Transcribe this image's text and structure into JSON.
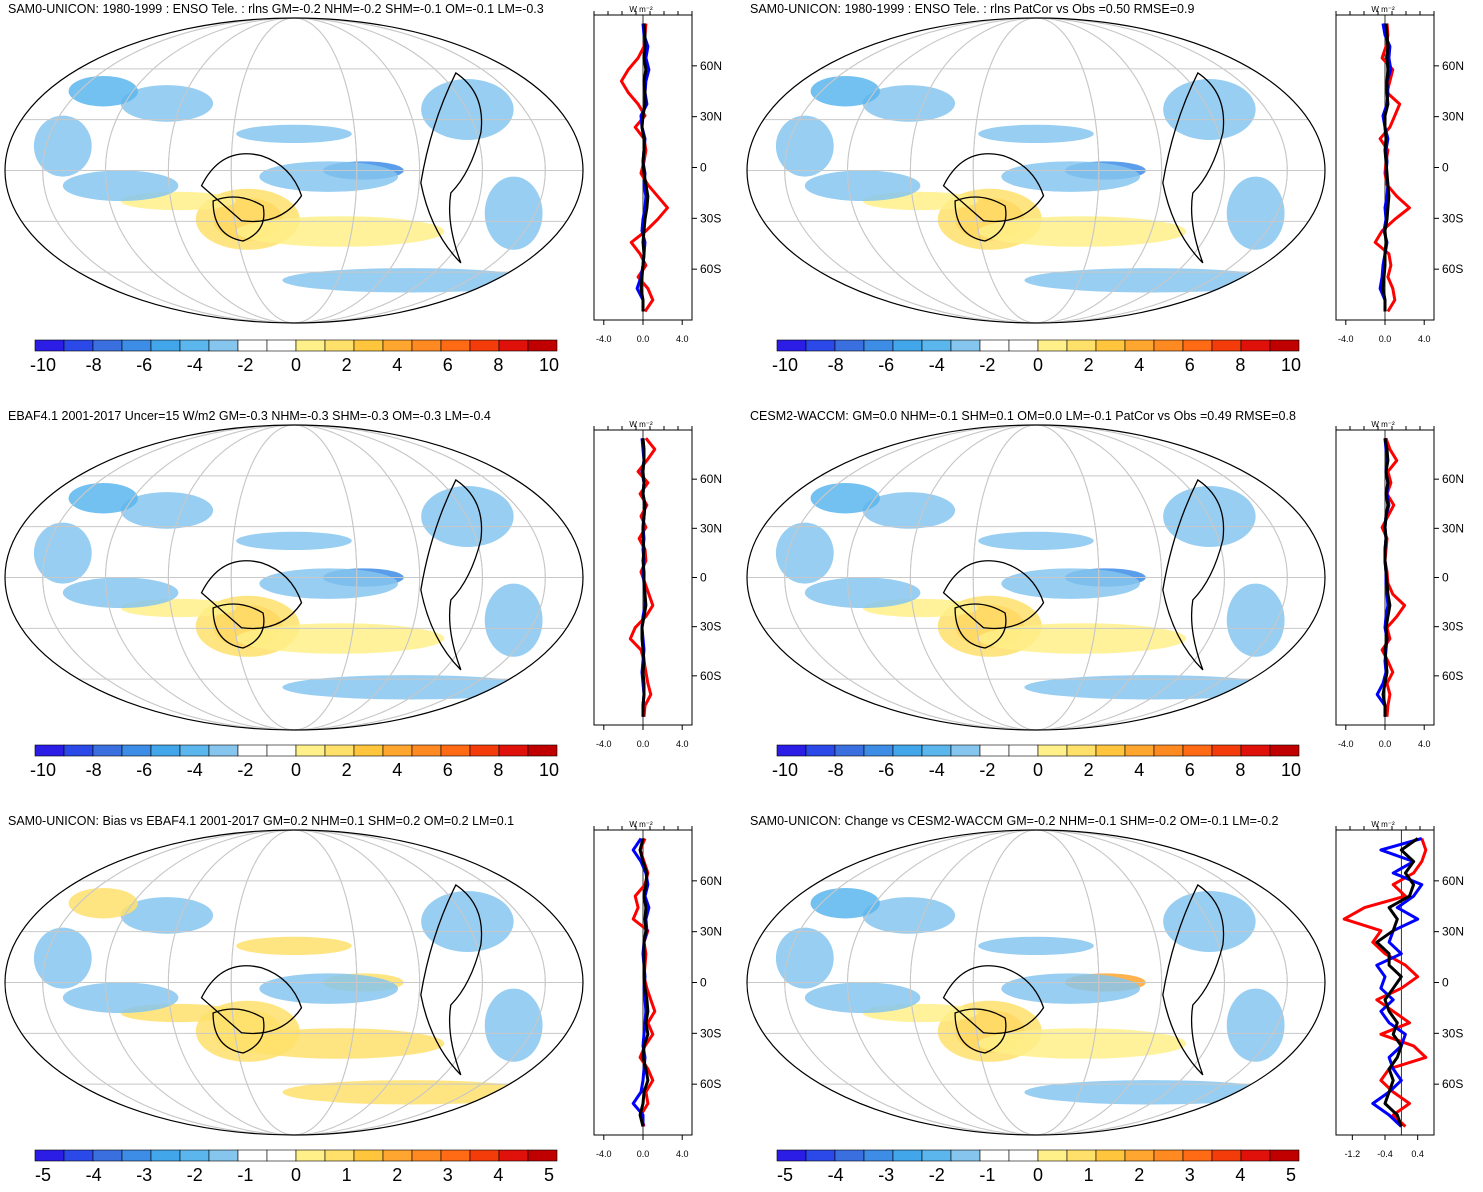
{
  "panels": [
    {
      "id": "p1",
      "title": "SAM0-UNICON: 1980-1999 : ENSO Tele. : rlns GM=-0.2 NHM=-0.2 SHM=-0.1 OM=-0.1 LM=-0.3",
      "colorbar_labels": [
        "-10",
        "-8",
        "-6",
        "-4",
        "-2",
        "0",
        "2",
        "4",
        "6",
        "8",
        "10"
      ],
      "profile_units": "W m⁻²",
      "profile_x_labels": [
        "-4.0",
        "0.0",
        "4.0"
      ],
      "profile_x_range": [
        -5,
        5
      ],
      "lat_labels": [
        "60N",
        "30N",
        "0",
        "30S",
        "60S"
      ],
      "profile_series": {
        "red": [
          0.3,
          0.2,
          0.1,
          -0.5,
          -1.5,
          -2.2,
          -1.5,
          -0.5,
          0.2,
          -0.8,
          0.1,
          0.3,
          0.1,
          -0.2,
          0.5,
          1.5,
          2.5,
          1.5,
          0.3,
          -1.2,
          -0.3,
          0.3,
          -0.5,
          0.5,
          1.0,
          0.2
        ],
        "blue": [
          0.0,
          0.1,
          0.5,
          0.3,
          0.6,
          0.3,
          0.2,
          0.4,
          -0.2,
          -0.1,
          0.2,
          0.1,
          0.0,
          0.2,
          0.1,
          0.3,
          0.2,
          0.0,
          -0.1,
          0.2,
          0.1,
          0.0,
          -0.2,
          -0.6,
          0.0,
          0.0
        ],
        "black": [
          0.1,
          0.2,
          0.2,
          0.1,
          0.3,
          0.1,
          0.2,
          0.2,
          0.0,
          -0.1,
          0.1,
          0.1,
          0.0,
          0.1,
          0.3,
          0.5,
          0.4,
          0.2,
          0.1,
          0.0,
          0.1,
          0.0,
          -0.1,
          -0.2,
          0.0,
          0.0
        ]
      }
    },
    {
      "id": "p2",
      "title": "SAM0-UNICON: 1980-1999 : ENSO Tele. : rlns PatCor vs Obs =0.50 RMSE=0.9",
      "colorbar_labels": [
        "-10",
        "-8",
        "-6",
        "-4",
        "-2",
        "0",
        "2",
        "4",
        "6",
        "8",
        "10"
      ],
      "profile_units": "W m⁻²",
      "profile_x_labels": [
        "-4.0",
        "0.0",
        "4.0"
      ],
      "profile_x_range": [
        -5,
        5
      ],
      "lat_labels": [
        "60N",
        "30N",
        "0",
        "30S",
        "60S"
      ],
      "profile_series": {
        "red": [
          0.2,
          0.3,
          0.1,
          -0.3,
          0.8,
          0.5,
          0.2,
          1.5,
          1.0,
          0.5,
          -0.5,
          0.3,
          0.1,
          0.0,
          0.2,
          1.2,
          2.5,
          1.0,
          -0.3,
          -1.0,
          0.4,
          0.6,
          0.3,
          0.8,
          1.0,
          0.3
        ],
        "blue": [
          -0.2,
          0.0,
          0.5,
          0.4,
          0.6,
          0.2,
          0.3,
          0.2,
          -0.2,
          0.0,
          0.3,
          0.1,
          0.2,
          0.1,
          0.3,
          0.2,
          0.0,
          0.1,
          -0.1,
          0.2,
          0.0,
          -0.2,
          -0.3,
          -0.5,
          0.0,
          0.0
        ],
        "black": [
          0.1,
          0.2,
          0.3,
          0.2,
          0.3,
          0.2,
          0.2,
          0.3,
          0.0,
          0.0,
          0.1,
          0.0,
          0.1,
          0.2,
          0.3,
          0.4,
          0.3,
          0.2,
          0.0,
          0.1,
          0.0,
          0.0,
          -0.1,
          -0.2,
          0.0,
          0.0
        ]
      }
    },
    {
      "id": "p3",
      "title": "EBAF4.1 2001-2017 Uncer=15 W/m2 GM=-0.3 NHM=-0.3 SHM=-0.3 OM=-0.3 LM=-0.4",
      "colorbar_labels": [
        "-10",
        "-8",
        "-6",
        "-4",
        "-2",
        "0",
        "2",
        "4",
        "6",
        "8",
        "10"
      ],
      "profile_units": "W m⁻²",
      "profile_x_labels": [
        "-4.0",
        "0.0",
        "4.0"
      ],
      "profile_x_range": [
        -5,
        5
      ],
      "lat_labels": [
        "60N",
        "30N",
        "0",
        "30S",
        "60S"
      ],
      "profile_series": {
        "red": [
          0.3,
          1.2,
          0.4,
          -0.5,
          0.5,
          -0.3,
          0.4,
          -0.2,
          0.3,
          -0.4,
          0.2,
          0.3,
          -0.2,
          0.2,
          0.6,
          1.0,
          0.3,
          -0.8,
          -1.3,
          -0.2,
          0.1,
          0.3,
          0.5,
          0.8,
          0.2,
          0.1
        ],
        "blue": [
          -0.1,
          0.0,
          0.1,
          -0.1,
          0.1,
          0.0,
          0.2,
          0.1,
          0.0,
          0.1,
          0.0,
          0.1,
          0.0,
          0.1,
          0.2,
          0.2,
          0.0,
          -0.1,
          0.0,
          0.1,
          0.0,
          -0.1,
          0.0,
          0.1,
          0.0,
          0.0
        ],
        "black": [
          0.0,
          0.1,
          0.1,
          0.0,
          0.1,
          0.0,
          0.2,
          0.1,
          0.0,
          0.0,
          0.1,
          0.0,
          0.1,
          0.1,
          0.2,
          0.3,
          0.1,
          -0.1,
          -0.1,
          0.0,
          0.1,
          0.0,
          0.1,
          0.1,
          0.0,
          0.0
        ]
      }
    },
    {
      "id": "p4",
      "title": "CESM2-WACCM: GM=0.0 NHM=-0.1 SHM=0.1 OM=0.0 LM=-0.1 PatCor vs Obs =0.49 RMSE=0.8",
      "colorbar_labels": [
        "-10",
        "-8",
        "-6",
        "-4",
        "-2",
        "0",
        "2",
        "4",
        "6",
        "8",
        "10"
      ],
      "profile_units": "W m⁻²",
      "profile_x_labels": [
        "-4.0",
        "0.0",
        "4.0"
      ],
      "profile_x_range": [
        -5,
        5
      ],
      "lat_labels": [
        "60N",
        "30N",
        "0",
        "30S",
        "60S"
      ],
      "profile_series": {
        "red": [
          0.1,
          0.5,
          1.2,
          0.3,
          0.6,
          0.2,
          0.9,
          0.3,
          -0.3,
          0.2,
          0.1,
          0.0,
          0.2,
          0.3,
          0.8,
          2.0,
          1.2,
          0.2,
          0.5,
          -0.3,
          0.3,
          0.8,
          0.2,
          0.5,
          0.3,
          0.2
        ],
        "blue": [
          0.0,
          0.1,
          0.2,
          0.1,
          0.3,
          0.2,
          0.4,
          0.1,
          0.0,
          0.1,
          0.0,
          0.0,
          0.1,
          0.1,
          0.2,
          0.3,
          0.1,
          0.0,
          0.2,
          0.1,
          0.0,
          0.1,
          -0.2,
          -0.8,
          0.0,
          0.0
        ],
        "black": [
          0.0,
          0.2,
          0.3,
          0.1,
          0.3,
          0.1,
          0.3,
          0.1,
          0.0,
          0.1,
          0.0,
          0.0,
          0.1,
          0.2,
          0.3,
          0.5,
          0.3,
          0.1,
          0.2,
          0.0,
          0.1,
          0.2,
          0.0,
          -0.2,
          0.0,
          0.0
        ]
      }
    },
    {
      "id": "p5",
      "title": "SAM0-UNICON: Bias vs EBAF4.1 2001-2017 GM=0.2 NHM=0.1 SHM=0.2 OM=0.2 LM=0.1",
      "colorbar_labels": [
        "-5",
        "-4",
        "-3",
        "-2",
        "-1",
        "0",
        "1",
        "2",
        "3",
        "4",
        "5"
      ],
      "profile_units": "W m⁻²",
      "profile_x_labels": [
        "-4.0",
        "0.0",
        "4.0"
      ],
      "profile_x_range": [
        -5,
        5
      ],
      "lat_labels": [
        "60N",
        "30N",
        "0",
        "30S",
        "60S"
      ],
      "profile_series": {
        "red": [
          0.2,
          -0.3,
          0.1,
          0.5,
          0.2,
          -0.8,
          -0.5,
          -1.0,
          0.5,
          0.1,
          0.3,
          0.2,
          0.1,
          0.4,
          0.8,
          1.2,
          0.5,
          1.0,
          0.2,
          -0.3,
          0.5,
          1.0,
          0.3,
          0.5,
          -0.2,
          0.1
        ],
        "blue": [
          -0.2,
          -1.0,
          -0.2,
          0.3,
          0.5,
          0.2,
          0.6,
          0.3,
          0.4,
          0.1,
          0.0,
          0.1,
          0.2,
          0.1,
          0.2,
          0.3,
          0.2,
          0.1,
          0.0,
          0.2,
          0.1,
          0.0,
          -0.2,
          -1.0,
          0.0,
          0.0
        ],
        "black": [
          0.0,
          -0.3,
          0.0,
          0.4,
          0.3,
          0.1,
          0.3,
          0.2,
          0.3,
          0.1,
          0.1,
          0.1,
          0.1,
          0.2,
          0.4,
          0.5,
          0.3,
          0.5,
          0.1,
          0.0,
          0.3,
          0.5,
          0.1,
          0.0,
          -0.3,
          0.0
        ]
      }
    },
    {
      "id": "p6",
      "title": "SAM0-UNICON: Change vs CESM2-WACCM GM=-0.2 NHM=-0.1 SHM=-0.2 OM=-0.1 LM=-0.2",
      "colorbar_labels": [
        "-5",
        "-4",
        "-3",
        "-2",
        "-1",
        "0",
        "1",
        "2",
        "3",
        "4",
        "5"
      ],
      "profile_units": "W m⁻²",
      "profile_x_labels": [
        "-1.2",
        "-0.4",
        "0.4"
      ],
      "profile_x_range": [
        -1.6,
        0.8
      ],
      "lat_labels": [
        "60N",
        "30N",
        "0",
        "30S",
        "60S"
      ],
      "profile_series": {
        "red": [
          0.5,
          0.6,
          0.5,
          0.3,
          -0.2,
          0.1,
          -0.9,
          -1.4,
          -0.5,
          -0.7,
          -0.4,
          0.1,
          0.4,
          0.0,
          -0.6,
          -0.2,
          0.2,
          -0.5,
          0.3,
          0.6,
          -0.3,
          -0.5,
          -0.2,
          0.2,
          -0.2,
          0.1
        ],
        "blue": [
          0.5,
          -0.5,
          0.3,
          -0.2,
          0.5,
          0.3,
          -0.1,
          0.4,
          -0.2,
          -0.3,
          0.0,
          -0.6,
          -0.4,
          -0.5,
          -0.2,
          -0.5,
          -0.3,
          0.1,
          0.0,
          -0.3,
          -0.2,
          0.0,
          -0.3,
          -0.7,
          -0.3,
          0.0
        ],
        "black": [
          0.4,
          0.0,
          0.3,
          0.1,
          0.3,
          0.2,
          -0.3,
          -0.1,
          -0.2,
          -0.6,
          -0.3,
          -0.3,
          0.0,
          -0.2,
          -0.4,
          -0.3,
          -0.1,
          -0.2,
          0.0,
          -0.1,
          -0.3,
          -0.2,
          -0.3,
          -0.4,
          -0.1,
          0.0
        ]
      }
    }
  ],
  "colors": {
    "colorbar": [
      "#2b1de6",
      "#2a49e8",
      "#3a6fe0",
      "#3d8ce6",
      "#42a6ea",
      "#5bb6ed",
      "#86c6ee",
      "#ffffff",
      "#ffffff",
      "#fff08a",
      "#ffe06b",
      "#ffc53d",
      "#ffa630",
      "#ff8a22",
      "#ff6a14",
      "#f33c0a",
      "#e0100a",
      "#c00000"
    ],
    "series": {
      "red": "#ff0000",
      "blue": "#0000ff",
      "black": "#000000"
    }
  }
}
